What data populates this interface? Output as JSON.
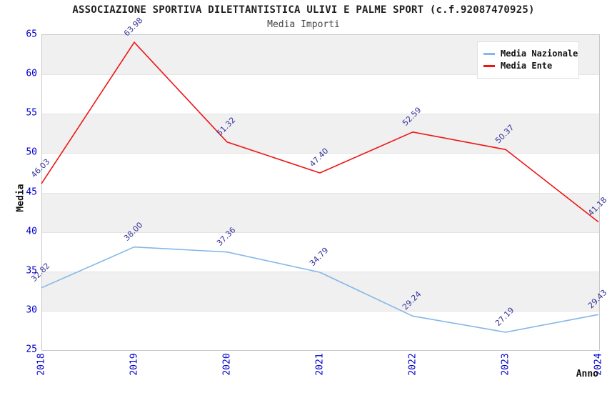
{
  "header": {
    "title": "ASSOCIAZIONE SPORTIVA DILETTANTISTICA ULIVI E PALME SPORT (c.f.92087470925)",
    "subtitle": "Media Importi"
  },
  "axes": {
    "y_label": "Media",
    "x_label": "Anno",
    "y_ticks": [
      65,
      60,
      55,
      50,
      45,
      40,
      35,
      30,
      25
    ],
    "x_ticks": [
      "2018",
      "2019",
      "2020",
      "2021",
      "2022",
      "2023",
      "2024"
    ]
  },
  "legend": [
    {
      "label": "Media Nazionale",
      "color": "#85b7e8"
    },
    {
      "label": "Media Ente",
      "color": "#ee1515"
    }
  ],
  "colors": {
    "tick_label": "#0000cc",
    "value_label": "#333399",
    "band_gray": "#f0f0f0",
    "band_white": "#ffffff",
    "plot_border": "#c9c9c9",
    "title_text": "#222222",
    "series_nazionale": "#85b7e8",
    "series_ente": "#ee1515"
  },
  "chart_data": {
    "type": "line",
    "title": "ASSOCIAZIONE SPORTIVA DILETTANTISTICA ULIVI E PALME SPORT (c.f.92087470925)",
    "subtitle": "Media Importi",
    "xlabel": "Anno",
    "ylabel": "Media",
    "x": [
      2018,
      2019,
      2020,
      2021,
      2022,
      2023,
      2024
    ],
    "series": [
      {
        "name": "Media Nazionale",
        "color": "#85b7e8",
        "values": [
          32.82,
          38.0,
          37.36,
          34.79,
          29.24,
          27.19,
          29.43
        ]
      },
      {
        "name": "Media Ente",
        "color": "#ee1515",
        "values": [
          46.03,
          63.98,
          51.32,
          47.4,
          52.59,
          50.37,
          41.18
        ]
      }
    ],
    "ylim": [
      25,
      65
    ],
    "y_tick_step": 5,
    "grid": "horizontal-bands-alternating",
    "band_colors": [
      "#f0f0f0",
      "#ffffff"
    ],
    "value_labels": "shown-rotated-45deg",
    "legend_position": "top-right"
  }
}
